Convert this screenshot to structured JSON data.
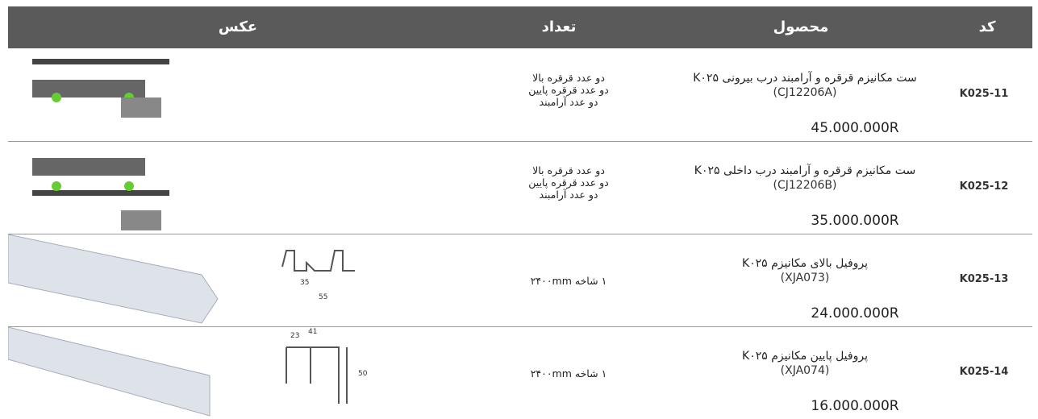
{
  "header": {
    "columns": [
      "کد",
      "محصول",
      "تعداد",
      "عکس"
    ]
  },
  "rows": [
    {
      "code": "K025-11",
      "name": "ست مکانیزم قرقره و آرامبند درب بیرونی K۰۲۵",
      "model": "(CJ12206A)",
      "price": "45.000.000R",
      "quantity": [
        "دو عدد قرقره بالا",
        "دو عدد قرقره پایین",
        "دو عدد آرامبند"
      ]
    },
    {
      "code": "K025-12",
      "name": "ست مکانیزم قرقره و آرامبند درب داخلی K۰۲۵",
      "model": "(CJ12206B)",
      "price": "35.000.000R",
      "quantity": [
        "دو عدد قرقره بالا",
        "دو عدد قرقره پایین",
        "دو عدد آرامبند"
      ]
    },
    {
      "code": "K025-13",
      "name": "پروفیل بالای مکانیزم K۰۲۵",
      "model": "(XJA073)",
      "price": "24.000.000R",
      "quantity": [
        "۱ شاخه ۲۴۰۰mm"
      ],
      "image_labels": [
        "35",
        "55"
      ]
    },
    {
      "code": "K025-14",
      "name": "پروفیل پایین مکانیزم K۰۲۵",
      "model": "(XJA074)",
      "price": "16.000.000R",
      "quantity": [
        "۱ شاخه ۲۴۰۰mm"
      ],
      "image_labels": [
        "23",
        "41",
        "50"
      ]
    }
  ]
}
